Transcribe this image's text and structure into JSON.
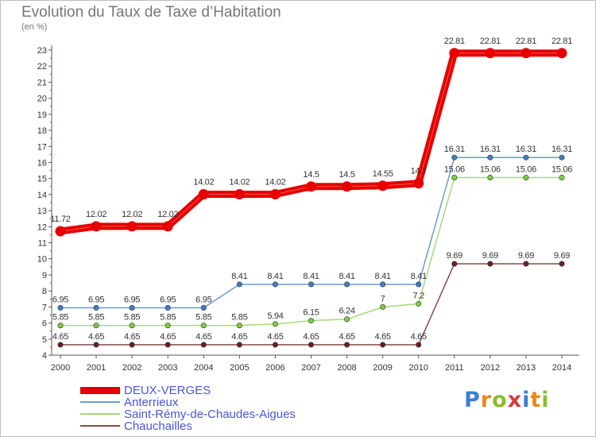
{
  "title": "Evolution du Taux de Taxe d’Habitation",
  "subtitle": "(en %)",
  "logo": {
    "text": "Proxiti",
    "colors": [
      "#3c7fd1",
      "#e8891e",
      "#8bbd2c",
      "#d23b3b",
      "#3c7fd1",
      "#e8891e",
      "#8bbd2c"
    ]
  },
  "chart_data": {
    "type": "line",
    "title": "Evolution du Taux de Taxe d’Habitation",
    "ylabel": "(en %)",
    "xlabel": "",
    "x": [
      "2000",
      "2001",
      "2002",
      "2003",
      "2004",
      "2005",
      "2006",
      "2007",
      "2008",
      "2009",
      "2010",
      "2011",
      "2012",
      "2013",
      "2014"
    ],
    "ylim": [
      4,
      23
    ],
    "yticks": [
      "4",
      "5",
      "6",
      "7",
      "8",
      "9",
      "10",
      "11",
      "12",
      "13",
      "14",
      "15",
      "16",
      "17",
      "18",
      "19",
      "20",
      "21",
      "22",
      "23"
    ],
    "grid": false,
    "legend_position": "bottom",
    "series": [
      {
        "name": "DEUX-VERGES",
        "color": "#e60000",
        "emphasis": true,
        "values": [
          11.72,
          12.02,
          12.02,
          12.02,
          14.02,
          14.02,
          14.02,
          14.5,
          14.5,
          14.55,
          14.7,
          22.81,
          22.81,
          22.81,
          22.81
        ],
        "labels": [
          "11.72",
          "12.02",
          "12.02",
          "12.02",
          "14.02",
          "14.02",
          "14.02",
          "14.5",
          "14.5",
          "14.55",
          "14.7",
          "22.81",
          "22.81",
          "22.81",
          "22.81"
        ]
      },
      {
        "name": "Anterrieux",
        "color": "#6a9bd1",
        "marker": "#3e7fc4",
        "values": [
          6.95,
          6.95,
          6.95,
          6.95,
          6.95,
          8.41,
          8.41,
          8.41,
          8.41,
          8.41,
          8.41,
          16.31,
          16.31,
          16.31,
          16.31
        ],
        "labels": [
          "6.95",
          "6.95",
          "6.95",
          "6.95",
          "6.95",
          "8.41",
          "8.41",
          "8.41",
          "8.41",
          "8.41",
          "8.41",
          "16.31",
          "16.31",
          "16.31",
          "16.31"
        ]
      },
      {
        "name": "Saint-Rémy-de-Chaudes-Aigues",
        "color": "#a6d87a",
        "marker": "#7ccf3b",
        "values": [
          5.85,
          5.85,
          5.85,
          5.85,
          5.85,
          5.85,
          5.94,
          6.15,
          6.24,
          7,
          7.2,
          15.06,
          15.06,
          15.06,
          15.06
        ],
        "labels": [
          "5.85",
          "5.85",
          "5.85",
          "5.85",
          "5.85",
          "5.85",
          "5.94",
          "6.15",
          "6.24",
          "7",
          "7.2",
          "15.06",
          "15.06",
          "15.06",
          "15.06"
        ]
      },
      {
        "name": "Chauchailles",
        "color": "#8b4a4a",
        "marker": "#6b1f1f",
        "values": [
          4.65,
          4.65,
          4.65,
          4.65,
          4.65,
          4.65,
          4.65,
          4.65,
          4.65,
          4.65,
          4.65,
          9.69,
          9.69,
          9.69,
          9.69
        ],
        "labels": [
          "4.65",
          "4.65",
          "4.65",
          "4.65",
          "4.65",
          "4.65",
          "4.65",
          "4.65",
          "4.65",
          "4.65",
          "4.65",
          "9.69",
          "9.69",
          "9.69",
          "9.69"
        ]
      }
    ]
  }
}
